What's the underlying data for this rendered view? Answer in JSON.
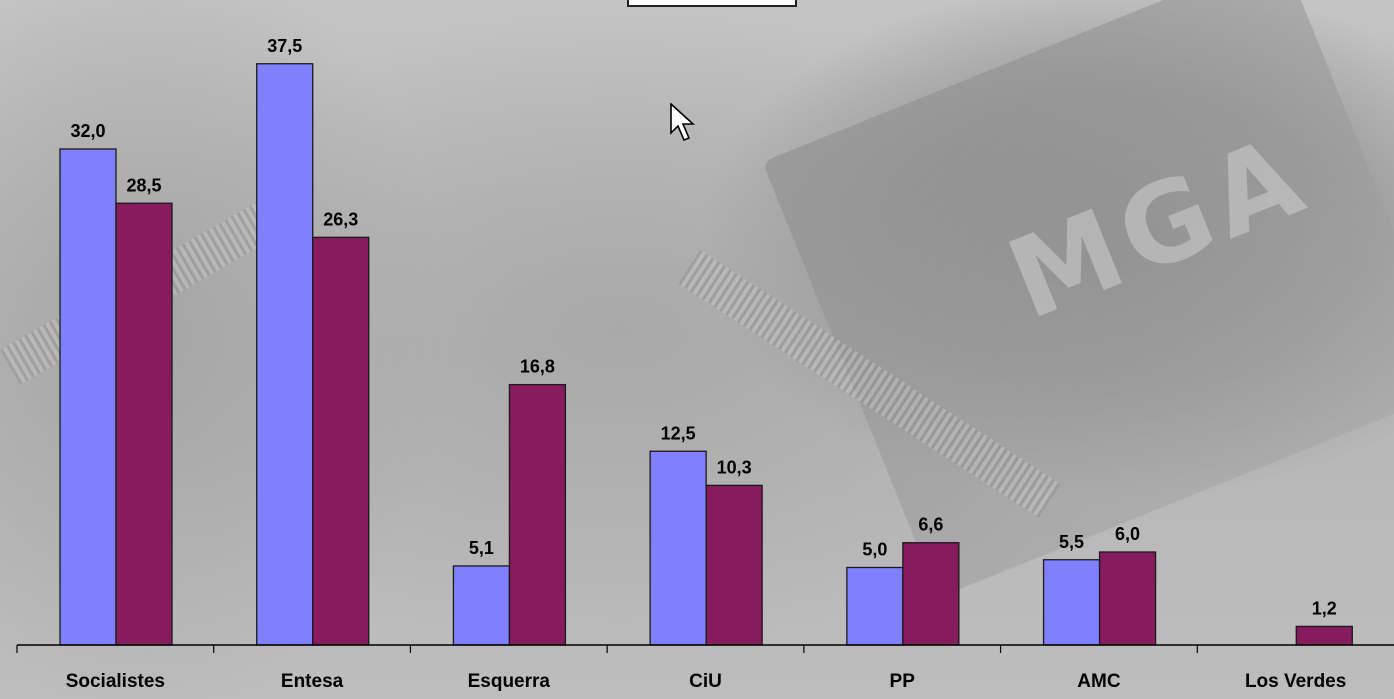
{
  "chart_data": {
    "type": "bar",
    "title": "",
    "xlabel": "",
    "ylabel": "",
    "categories": [
      "Socialistes",
      "Entesa",
      "Esquerra",
      "CiU",
      "PP",
      "AMC",
      "Los Verdes"
    ],
    "series": [
      {
        "color": "#8080ff",
        "values": [
          32.0,
          37.5,
          5.1,
          12.5,
          5.0,
          5.5,
          null
        ]
      },
      {
        "color": "#861b5e",
        "values": [
          28.5,
          26.3,
          16.8,
          10.3,
          6.6,
          6.0,
          1.2
        ]
      }
    ],
    "value_labels": [
      [
        "32,0",
        "37,5",
        "5,1",
        "12,5",
        "5,0",
        "5,5",
        ""
      ],
      [
        "28,5",
        "26,3",
        "16,8",
        "10,3",
        "6,6",
        "6,0",
        "1,2"
      ]
    ],
    "ylim": [
      0,
      40
    ],
    "grid": false,
    "legend": "none"
  },
  "cursor_icon": "pointer-arrow-icon"
}
